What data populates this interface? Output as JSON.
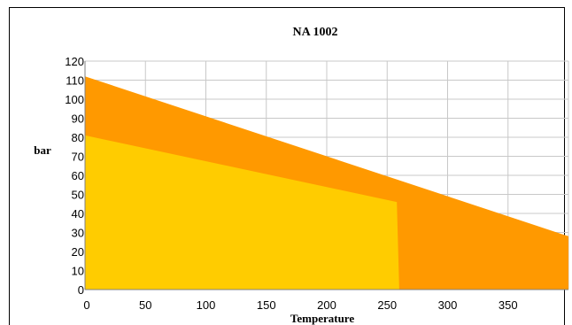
{
  "chart_data": {
    "type": "area",
    "title": "NA 1002",
    "xlabel": "Temperature",
    "ylabel": "bar",
    "xlim": [
      0,
      400
    ],
    "ylim": [
      0,
      120
    ],
    "xticks": [
      "0",
      "50",
      "100",
      "150",
      "200",
      "250",
      "300",
      "350"
    ],
    "yticks": [
      "0",
      "10",
      "20",
      "30",
      "40",
      "50",
      "60",
      "70",
      "80",
      "90",
      "100",
      "110",
      "120"
    ],
    "grid": true,
    "series": [
      {
        "color": "#FF9900",
        "x": [
          0,
          400
        ],
        "y": [
          112,
          28
        ]
      },
      {
        "color": "#FFCC00",
        "x": [
          0,
          258,
          260
        ],
        "y": [
          81,
          46,
          0
        ]
      }
    ]
  }
}
